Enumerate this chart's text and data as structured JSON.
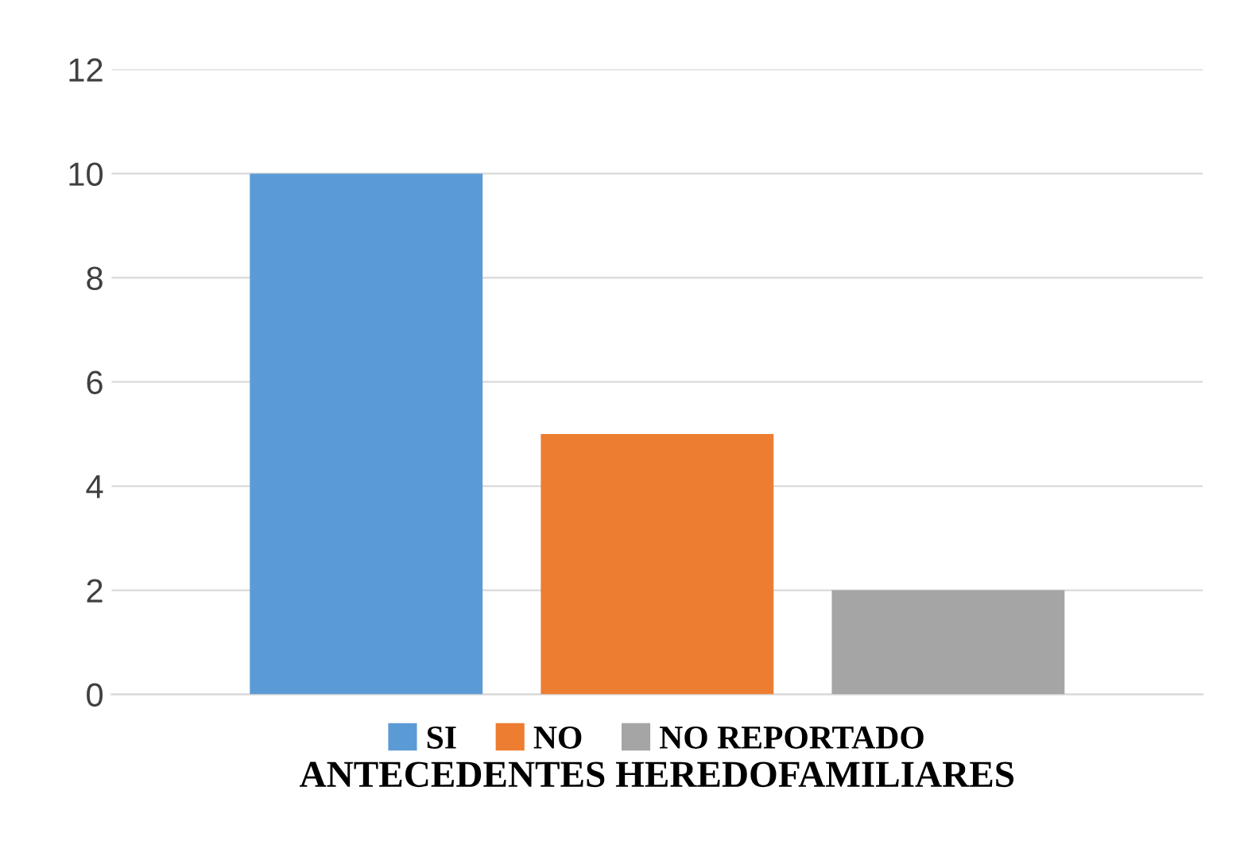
{
  "chart_data": {
    "type": "bar",
    "categories": [
      "ANTECEDENTES HEREDOFAMILIARES"
    ],
    "series": [
      {
        "name": "SI",
        "color": "#5b9bd5",
        "values": [
          10
        ]
      },
      {
        "name": "NO",
        "color": "#ed7d31",
        "values": [
          5
        ]
      },
      {
        "name": "NO REPORTADO",
        "color": "#a5a5a5",
        "values": [
          2
        ]
      }
    ],
    "ylim": [
      0,
      12
    ],
    "yticks": [
      0,
      2,
      4,
      6,
      8,
      10,
      12
    ],
    "grid": "y",
    "legend": "bottom"
  }
}
